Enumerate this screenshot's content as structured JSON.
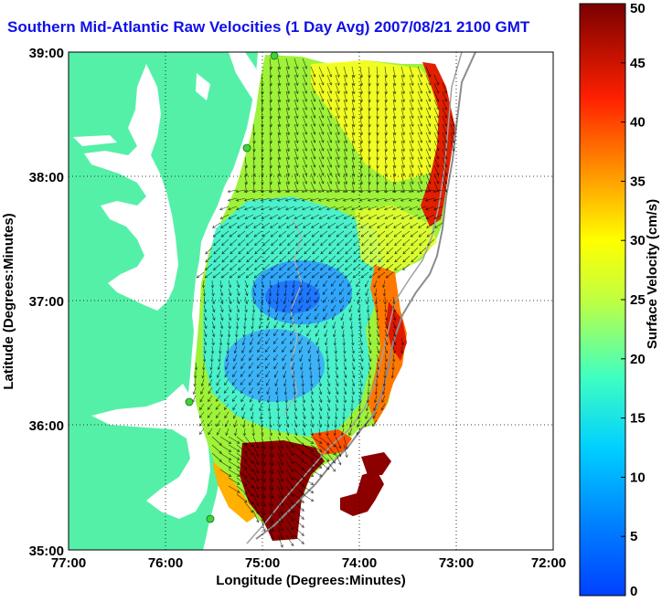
{
  "title": "Southern Mid-Atlantic Raw Velocities (1 Day Avg) 2007/08/21 2100 GMT",
  "x_axis": {
    "label": "Longitude (Degrees:Minutes)",
    "ticks": [
      "77:00",
      "76:00",
      "75:00",
      "74:00",
      "73:00",
      "72:00"
    ]
  },
  "y_axis": {
    "label": "Latitude (Degrees:Minutes)",
    "ticks": [
      "39:00",
      "38:00",
      "37:00",
      "36:00",
      "35:00"
    ]
  },
  "colorbar": {
    "label": "Surface Velocity (cm/s)",
    "ticks": [
      "50",
      "45",
      "40",
      "35",
      "30",
      "25",
      "20",
      "15",
      "10",
      "5",
      "0"
    ],
    "range": [
      0,
      50
    ],
    "colormap": "jet"
  },
  "colors": {
    "land": "#55f0a8",
    "water": "#ffffff",
    "title": "#1010e8",
    "station": "#39d639"
  },
  "gridlines": "dotted"
}
